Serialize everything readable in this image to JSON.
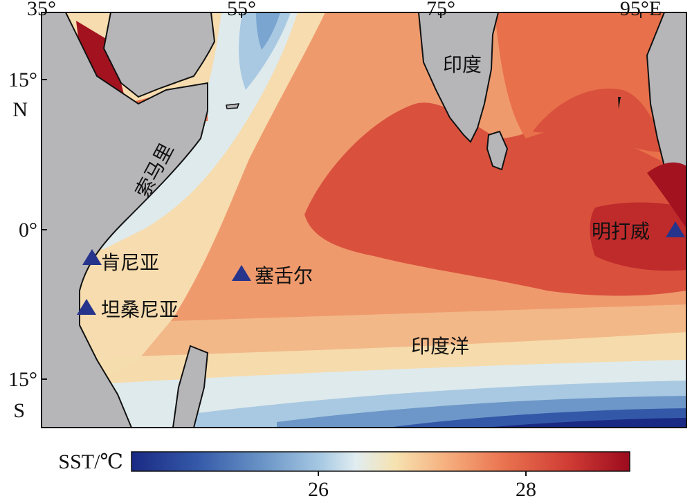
{
  "map": {
    "x_ticks": [
      "35°",
      "55°",
      "75°",
      "95°E"
    ],
    "y_ticks": [
      "15°",
      "N",
      "0°",
      "15°",
      "S"
    ],
    "places": {
      "india": "印度",
      "somalia": "索马里",
      "kenya": "肯尼亚",
      "tanzania": "坦桑尼亚",
      "seychelles": "塞舌尔",
      "mentawai": "明打威",
      "indian_ocean": "印度洋"
    },
    "land_color": "#b6b6b9",
    "site_marker_color": "#27348b"
  },
  "colorbar": {
    "label": "SST/℃",
    "ticks": [
      "26",
      "28"
    ],
    "colors": [
      "#1a2a84",
      "#3458a8",
      "#6d97c8",
      "#a7c9e3",
      "#e1edf1",
      "#f6e2b0",
      "#f6b07f",
      "#e9724f",
      "#cf3b34",
      "#9c0b1e"
    ]
  }
}
